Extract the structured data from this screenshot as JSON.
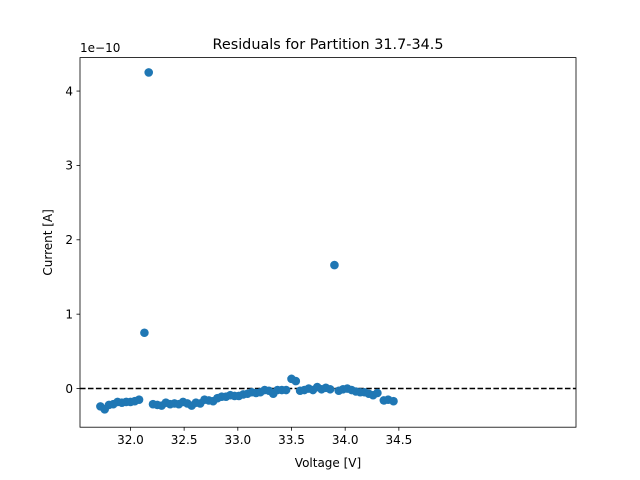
{
  "chart_data": {
    "type": "scatter",
    "title": "Residuals for Partition 31.7-34.5",
    "xlabel": "Voltage [V]",
    "ylabel": "Current [A]",
    "y_scale_label": "1e−10",
    "xlim": [
      31.53,
      36.15
    ],
    "ylim": [
      -0.52,
      4.45
    ],
    "x_ticks": [
      32.0,
      32.5,
      33.0,
      33.5,
      34.0,
      34.5
    ],
    "x_tick_labels": [
      "32.0",
      "32.5",
      "33.0",
      "33.5",
      "34.0",
      "34.5"
    ],
    "y_ticks": [
      0,
      1,
      2,
      3,
      4
    ],
    "y_tick_labels": [
      "0",
      "1",
      "2",
      "3",
      "4"
    ],
    "reference_line": {
      "y": 0,
      "style": "dashed",
      "color": "#000000"
    },
    "marker_color": "#1f77b4",
    "grid": false,
    "legend": "none",
    "points": [
      [
        31.72,
        -0.24
      ],
      [
        31.76,
        -0.28
      ],
      [
        31.8,
        -0.22
      ],
      [
        31.84,
        -0.21
      ],
      [
        31.88,
        -0.18
      ],
      [
        31.92,
        -0.19
      ],
      [
        31.96,
        -0.18
      ],
      [
        32.0,
        -0.18
      ],
      [
        32.04,
        -0.17
      ],
      [
        32.08,
        -0.15
      ],
      [
        32.13,
        0.75
      ],
      [
        32.17,
        4.25
      ],
      [
        32.21,
        -0.21
      ],
      [
        32.25,
        -0.22
      ],
      [
        32.29,
        -0.23
      ],
      [
        32.33,
        -0.19
      ],
      [
        32.37,
        -0.21
      ],
      [
        32.41,
        -0.2
      ],
      [
        32.45,
        -0.21
      ],
      [
        32.49,
        -0.18
      ],
      [
        32.53,
        -0.2
      ],
      [
        32.57,
        -0.23
      ],
      [
        32.61,
        -0.19
      ],
      [
        32.65,
        -0.2
      ],
      [
        32.69,
        -0.15
      ],
      [
        32.73,
        -0.16
      ],
      [
        32.77,
        -0.17
      ],
      [
        32.81,
        -0.13
      ],
      [
        32.85,
        -0.11
      ],
      [
        32.89,
        -0.11
      ],
      [
        32.93,
        -0.09
      ],
      [
        32.97,
        -0.1
      ],
      [
        33.01,
        -0.1
      ],
      [
        33.05,
        -0.08
      ],
      [
        33.09,
        -0.07
      ],
      [
        33.13,
        -0.05
      ],
      [
        33.17,
        -0.06
      ],
      [
        33.21,
        -0.05
      ],
      [
        33.25,
        -0.02
      ],
      [
        33.29,
        -0.03
      ],
      [
        33.33,
        -0.07
      ],
      [
        33.37,
        -0.02
      ],
      [
        33.41,
        -0.02
      ],
      [
        33.45,
        -0.02
      ],
      [
        33.5,
        0.13
      ],
      [
        33.54,
        0.1
      ],
      [
        33.58,
        -0.03
      ],
      [
        33.62,
        -0.02
      ],
      [
        33.66,
        0.0
      ],
      [
        33.7,
        -0.02
      ],
      [
        33.74,
        0.02
      ],
      [
        33.78,
        -0.01
      ],
      [
        33.82,
        0.01
      ],
      [
        33.86,
        -0.01
      ],
      [
        33.9,
        1.66
      ],
      [
        33.94,
        -0.03
      ],
      [
        33.98,
        -0.01
      ],
      [
        34.02,
        0.0
      ],
      [
        34.06,
        -0.02
      ],
      [
        34.1,
        -0.04
      ],
      [
        34.14,
        -0.05
      ],
      [
        34.18,
        -0.05
      ],
      [
        34.22,
        -0.07
      ],
      [
        34.26,
        -0.09
      ],
      [
        34.3,
        -0.06
      ],
      [
        34.36,
        -0.16
      ],
      [
        34.4,
        -0.15
      ],
      [
        34.45,
        -0.17
      ]
    ]
  }
}
